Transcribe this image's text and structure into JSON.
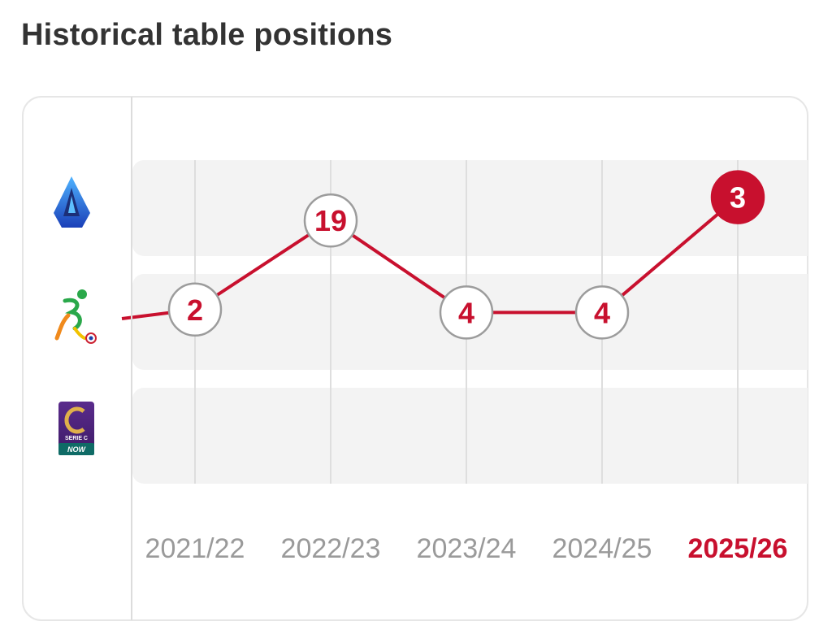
{
  "title": "Historical table positions",
  "leagues": [
    {
      "name": "Serie A",
      "icon": "serie-a-logo"
    },
    {
      "name": "Serie B",
      "icon": "serie-b-logo"
    },
    {
      "name": "Serie C",
      "icon": "serie-c-logo",
      "logo_text": [
        "SERIE C",
        "NOW"
      ]
    }
  ],
  "colors": {
    "accent": "#c8102e",
    "band": "#f3f3f3",
    "grid": "#dedede",
    "muted": "#9a9a9a"
  },
  "chart_data": {
    "type": "line",
    "title": "Historical table positions",
    "categories": [
      "2021/22",
      "2022/23",
      "2023/24",
      "2024/25",
      "2025/26"
    ],
    "highlight_category": "2025/26",
    "series": [
      {
        "points": [
          {
            "season": "2021/22",
            "league": "Serie B",
            "position": 2
          },
          {
            "season": "2022/23",
            "league": "Serie A",
            "position": 19
          },
          {
            "season": "2023/24",
            "league": "Serie B",
            "position": 4
          },
          {
            "season": "2024/25",
            "league": "Serie B",
            "position": 4
          },
          {
            "season": "2025/26",
            "league": "Serie A",
            "position": 3
          }
        ]
      }
    ]
  }
}
